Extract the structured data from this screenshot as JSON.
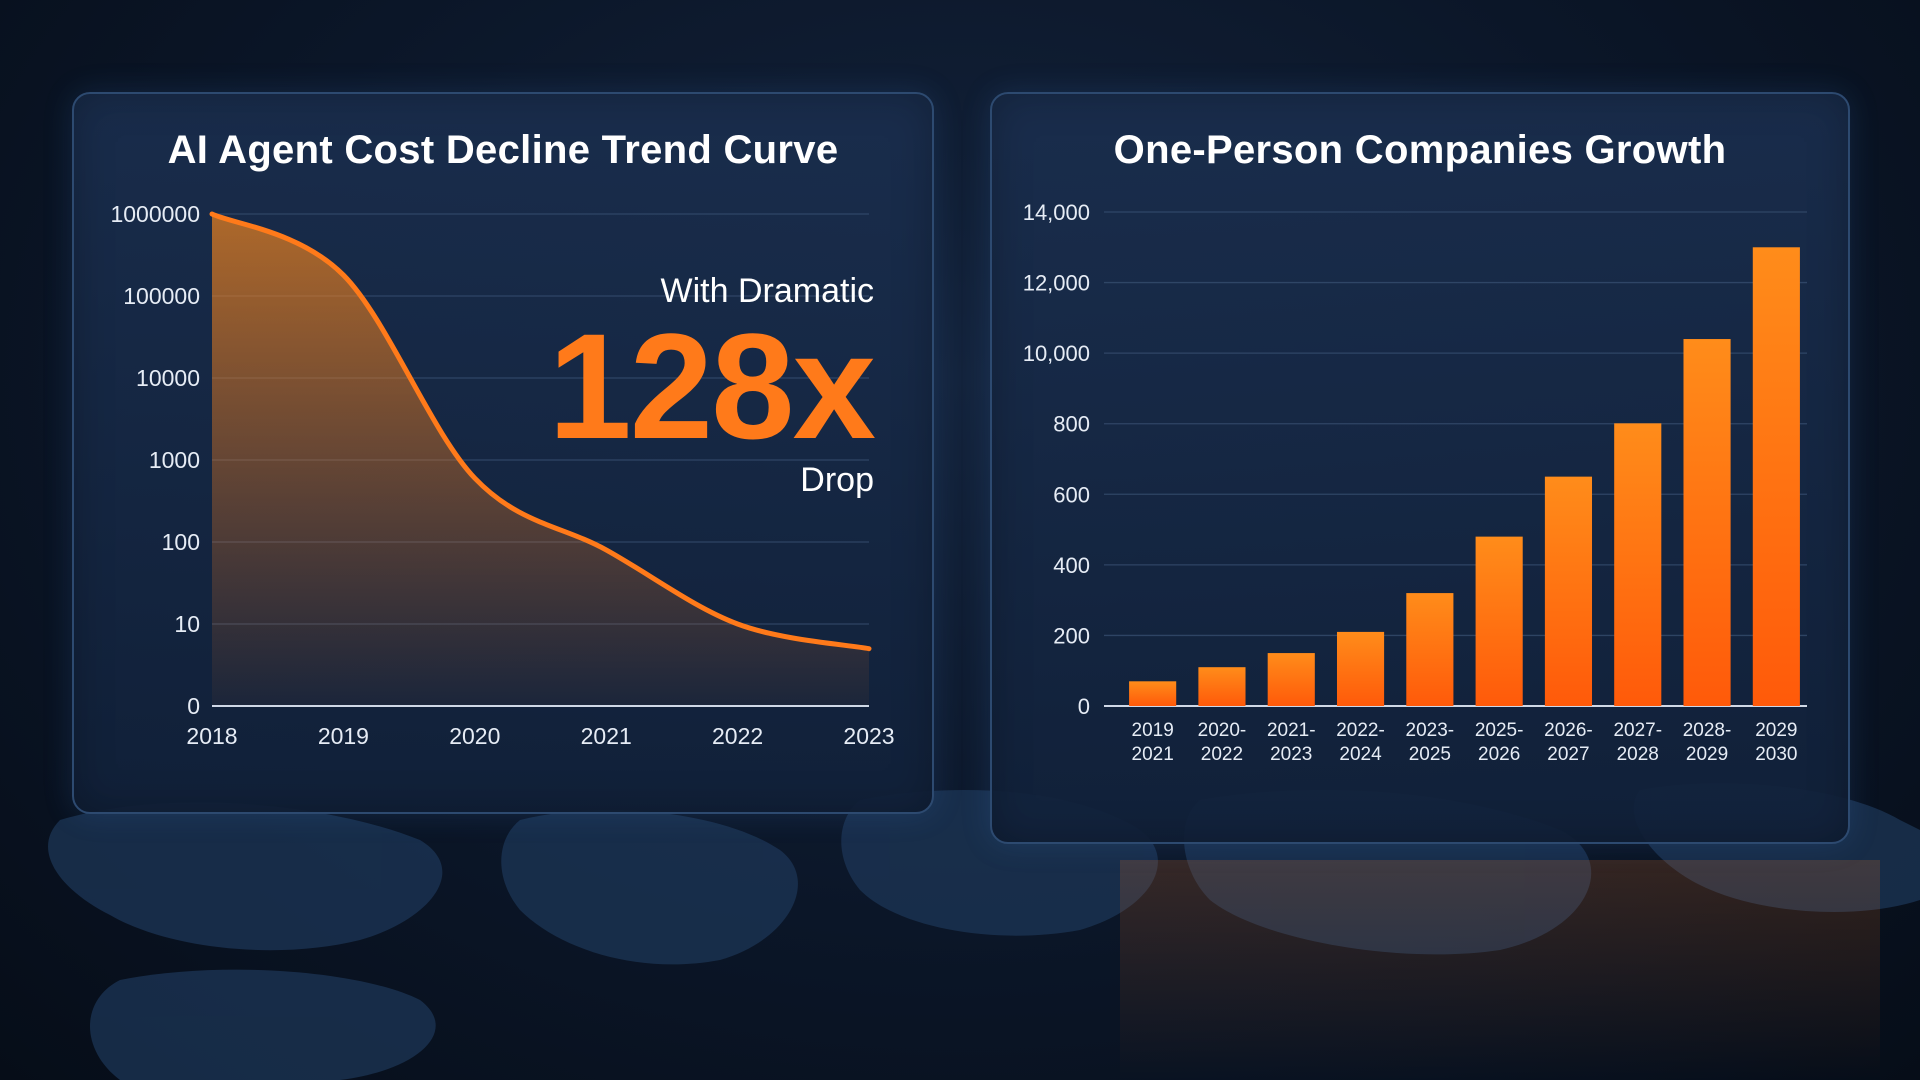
{
  "colors": {
    "background": "#0b1628",
    "panel": "#16294a",
    "accent_orange": "#ff7a1a",
    "bar_top": "#ff8c1a",
    "bar_bottom": "#ff5a0a",
    "grid": "#3a5274",
    "text": "#ffffff"
  },
  "chart_data": [
    {
      "type": "area",
      "title": "AI Agent Cost Decline Trend Curve",
      "xlabel": "",
      "ylabel": "",
      "y_scale": "log",
      "y_tick_labels": [
        "1000000",
        "100000",
        "10000",
        "1000",
        "100",
        "10",
        "0"
      ],
      "x": [
        "2018",
        "2019",
        "2020",
        "2021",
        "2022",
        "2023"
      ],
      "series": [
        {
          "values": [
            1000000,
            180000,
            600,
            80,
            10,
            5
          ]
        }
      ],
      "callout": {
        "prefix": "With Dramatic",
        "value": "128x",
        "suffix": "Drop"
      },
      "grid": true,
      "legend": "none"
    },
    {
      "type": "bar",
      "title": "One-Person Companies Growth",
      "xlabel": "",
      "ylabel": "",
      "y_tick_labels": [
        "14,000",
        "12,000",
        "10,000",
        "800",
        "600",
        "400",
        "200",
        "0"
      ],
      "categories": [
        [
          "2019",
          "2021"
        ],
        [
          "2020-",
          "2022"
        ],
        [
          "2021-",
          "2023"
        ],
        [
          "2022-",
          "2024"
        ],
        [
          "2023-",
          "2025"
        ],
        [
          "2025-",
          "2026"
        ],
        [
          "2026-",
          "2027"
        ],
        [
          "2027-",
          "2028"
        ],
        [
          "2028-",
          "2029"
        ],
        [
          "2029",
          "2030"
        ]
      ],
      "values": [
        70,
        110,
        150,
        210,
        320,
        480,
        650,
        850,
        10400,
        13000
      ],
      "grid": true,
      "legend": "none"
    }
  ]
}
